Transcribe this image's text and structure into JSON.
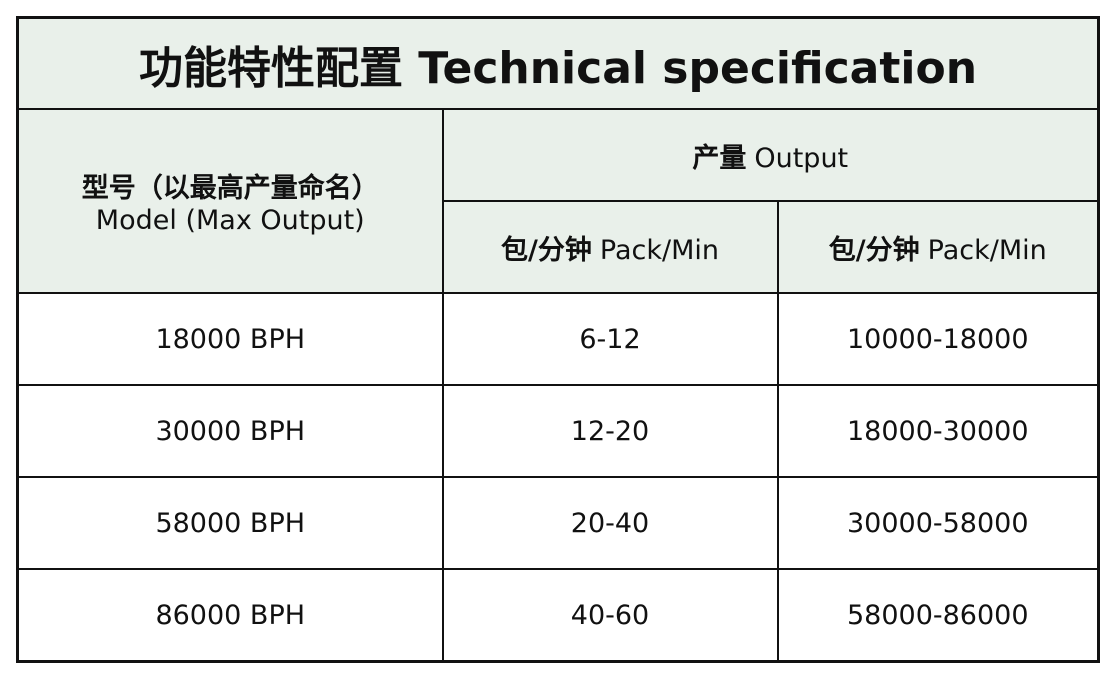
{
  "title": "功能特性配置 Technical specification",
  "table": {
    "header": {
      "model": {
        "zh": "型号（以最高产量命名）",
        "en": "Model (Max Output)"
      },
      "output": {
        "zh": "产量",
        "en": "Output"
      },
      "columns": [
        {
          "zh": "包/分钟",
          "en": "Pack/Min"
        },
        {
          "zh": "包/分钟",
          "en": "Pack/Min"
        }
      ]
    },
    "rows": [
      [
        "18000 BPH",
        "6-12",
        "10000-18000"
      ],
      [
        "30000 BPH",
        "12-20",
        "18000-30000"
      ],
      [
        "58000 BPH",
        "20-40",
        "30000-58000"
      ],
      [
        "86000 BPH",
        "40-60",
        "58000-86000"
      ]
    ]
  }
}
